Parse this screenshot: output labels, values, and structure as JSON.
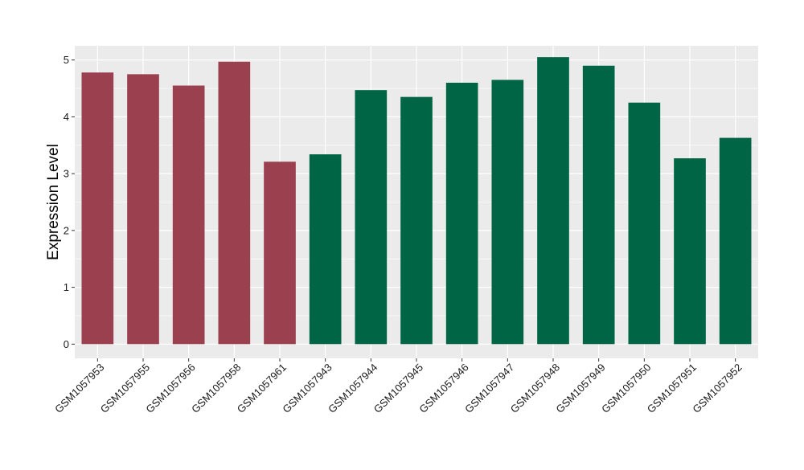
{
  "chart_data": {
    "type": "bar",
    "title": "",
    "xlabel": "",
    "ylabel": "Expression Level",
    "ylim": [
      -0.25,
      5.25
    ],
    "yticks": [
      0,
      1,
      2,
      3,
      4,
      5
    ],
    "grid": true,
    "categories": [
      "GSM1057953",
      "GSM1057955",
      "GSM1057956",
      "GSM1057958",
      "GSM1057961",
      "GSM1057943",
      "GSM1057944",
      "GSM1057945",
      "GSM1057946",
      "GSM1057947",
      "GSM1057948",
      "GSM1057949",
      "GSM1057950",
      "GSM1057951",
      "GSM1057952"
    ],
    "values": [
      4.78,
      4.75,
      4.55,
      4.97,
      3.21,
      3.34,
      4.47,
      4.35,
      4.6,
      4.65,
      5.05,
      4.9,
      4.25,
      3.27,
      3.63
    ],
    "groups": [
      "a",
      "a",
      "a",
      "a",
      "a",
      "b",
      "b",
      "b",
      "b",
      "b",
      "b",
      "b",
      "b",
      "b",
      "b"
    ],
    "group_colors": {
      "a": "#9b404f",
      "b": "#006544"
    },
    "panel_background": "#ebebeb",
    "grid_color": "#ffffff"
  }
}
